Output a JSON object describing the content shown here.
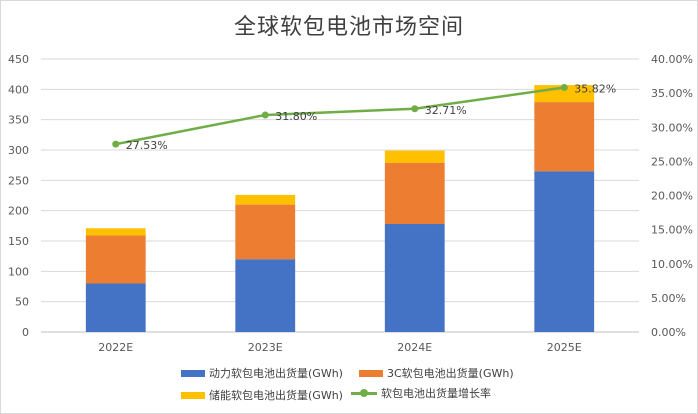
{
  "chart_data": {
    "type": "bar",
    "title": "全球软包电池市场空间",
    "categories": [
      "2022E",
      "2023E",
      "2024E",
      "2025E"
    ],
    "stacked": true,
    "series": [
      {
        "name": "动力软包电池出货量(GWh)",
        "type": "bar",
        "axis": "left",
        "color": "#4472c4",
        "values": [
          80,
          120,
          178,
          265
        ]
      },
      {
        "name": "3C软包电池出货量(GWh)",
        "type": "bar",
        "axis": "left",
        "color": "#ed7d31",
        "values": [
          79,
          90,
          101,
          114
        ]
      },
      {
        "name": "储能软包电池出货量(GWh)",
        "type": "bar",
        "axis": "left",
        "color": "#ffc000",
        "values": [
          12,
          16,
          20,
          28
        ]
      },
      {
        "name": "软包电池出货量增长率",
        "type": "line",
        "axis": "right",
        "color": "#70ad47",
        "values": [
          27.53,
          31.8,
          32.71,
          35.82
        ],
        "labels": [
          "27.53%",
          "31.80%",
          "32.71%",
          "35.82%"
        ]
      }
    ],
    "y_left": {
      "min": 0,
      "max": 450,
      "ticks": [
        "0",
        "50",
        "100",
        "150",
        "200",
        "250",
        "300",
        "350",
        "400",
        "450"
      ]
    },
    "y_right": {
      "min": 0,
      "max": 40,
      "ticks": [
        "0.00%",
        "5.00%",
        "10.00%",
        "15.00%",
        "20.00%",
        "25.00%",
        "30.00%",
        "35.00%",
        "40.00%"
      ]
    },
    "grid": true,
    "legend_position": "bottom"
  }
}
